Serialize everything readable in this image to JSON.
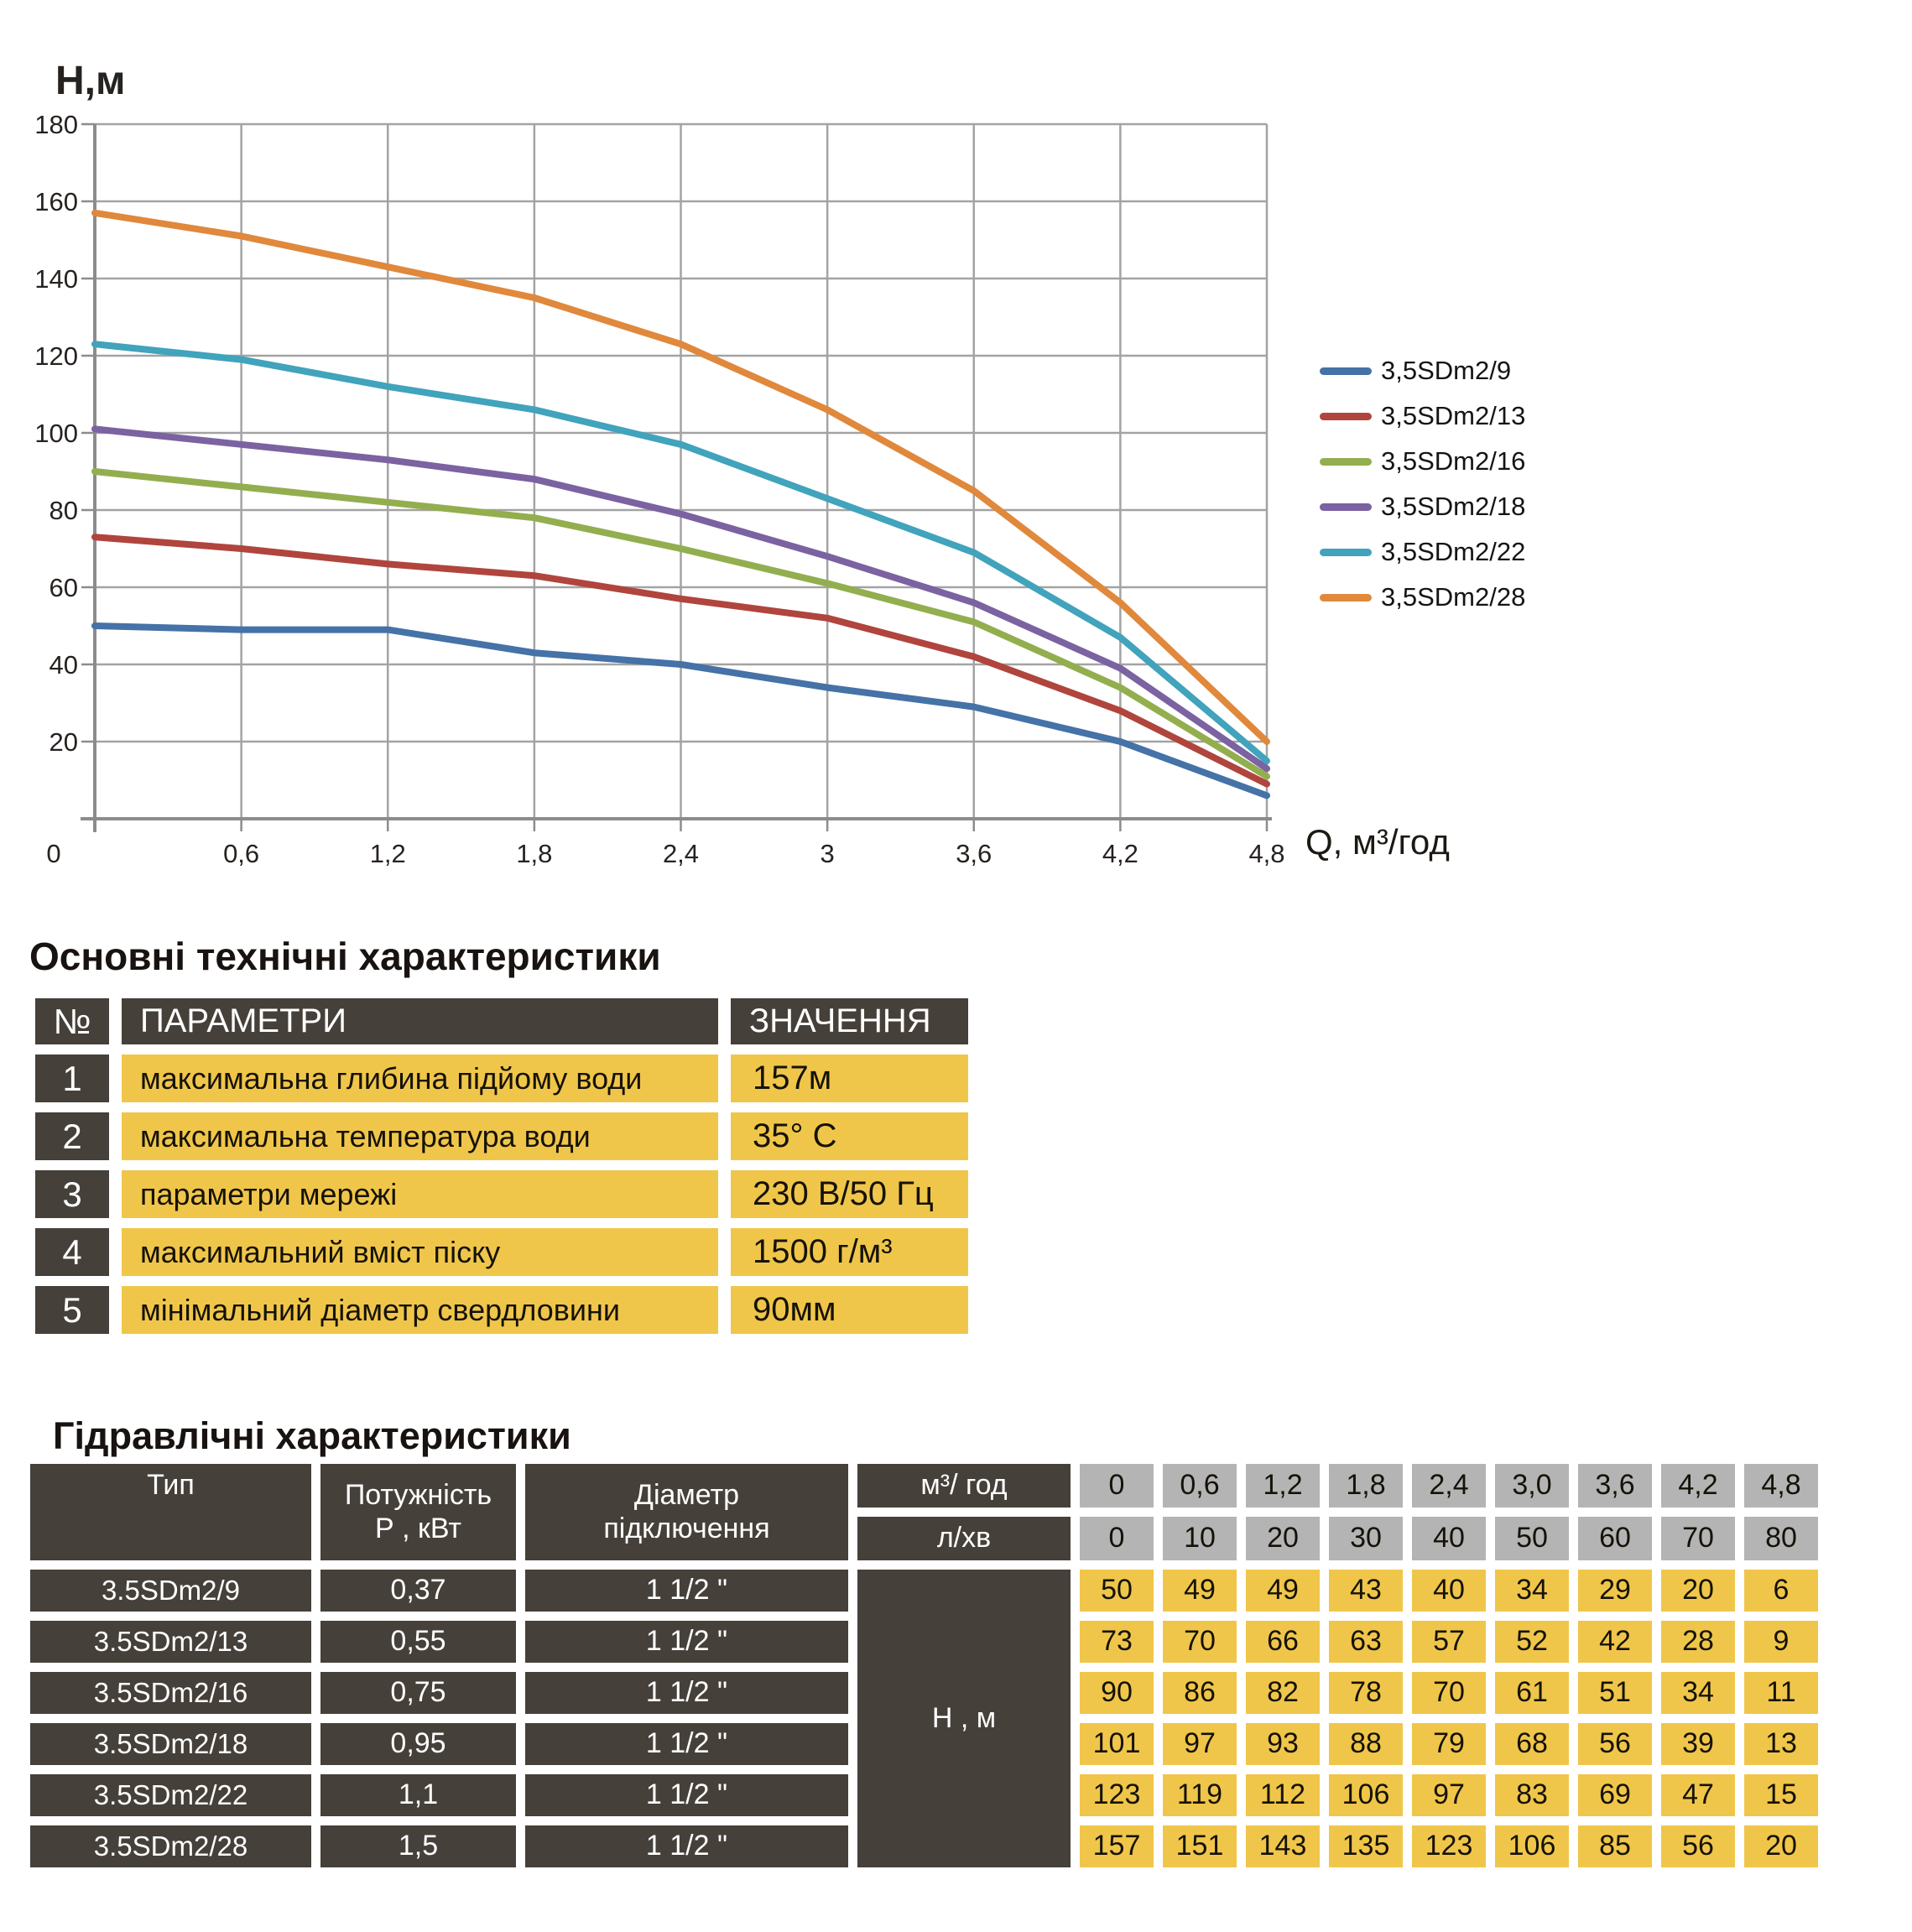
{
  "chart_data": {
    "type": "line",
    "title": "",
    "ylabel": "Н,м",
    "xlabel": "Q,  м³/год",
    "x": [
      0,
      0.6,
      1.2,
      1.8,
      2.4,
      3.0,
      3.6,
      4.2,
      4.8
    ],
    "x_tick_labels": [
      "0",
      "0,6",
      "1,2",
      "1,8",
      "2,4",
      "3",
      "3,6",
      "4,2",
      "4,8"
    ],
    "y_ticks": [
      0,
      20,
      40,
      60,
      80,
      100,
      120,
      140,
      160,
      180
    ],
    "xlim": [
      0,
      4.8
    ],
    "ylim": [
      0,
      180
    ],
    "grid": true,
    "legend_position": "right",
    "series": [
      {
        "name": "3,5SDm2/9",
        "color": "#4572A7",
        "values": [
          50,
          49,
          49,
          43,
          40,
          34,
          29,
          20,
          6
        ]
      },
      {
        "name": "3,5SDm2/13",
        "color": "#B0453E",
        "values": [
          73,
          70,
          66,
          63,
          57,
          52,
          42,
          28,
          9
        ]
      },
      {
        "name": "3,5SDm2/16",
        "color": "#93AE4F",
        "values": [
          90,
          86,
          82,
          78,
          70,
          61,
          51,
          34,
          11
        ]
      },
      {
        "name": "3,5SDm2/18",
        "color": "#7B62A1",
        "values": [
          101,
          97,
          93,
          88,
          79,
          68,
          56,
          39,
          13
        ]
      },
      {
        "name": "3,5SDm2/22",
        "color": "#41A3BC",
        "values": [
          123,
          119,
          112,
          106,
          97,
          83,
          69,
          47,
          15
        ]
      },
      {
        "name": "3,5SDm2/28",
        "color": "#E0883C",
        "values": [
          157,
          151,
          143,
          135,
          123,
          106,
          85,
          56,
          20
        ]
      }
    ]
  },
  "spec_section": {
    "title": "Основні технічні характеристики",
    "headers": {
      "num": "№",
      "param": "ПАРАМЕТРИ",
      "value": "ЗНАЧЕННЯ"
    },
    "rows": [
      {
        "num": "1",
        "param": "максимальна глибина підйому води",
        "value": "157м"
      },
      {
        "num": "2",
        "param": "максимальна температура води",
        "value": "35° С"
      },
      {
        "num": "3",
        "param": "параметри мережі",
        "value": "230 В/50 Гц"
      },
      {
        "num": "4",
        "param": "максимальний вміст піску",
        "value": "1500 г/м³"
      },
      {
        "num": "5",
        "param": "мінімальний діаметр свердловини",
        "value": "90мм"
      }
    ]
  },
  "hydro_section": {
    "title": "Гідравлічні характеристики",
    "headers": {
      "type": "Тип",
      "power": "Потужність\nР , кВт",
      "diameter": "Діаметр\nпідключення",
      "flow_m3h": "м³/ год",
      "flow_lmin": "л/хв",
      "head": "Н , м"
    },
    "flow_m3h_values": [
      "0",
      "0,6",
      "1,2",
      "1,8",
      "2,4",
      "3,0",
      "3,6",
      "4,2",
      "4,8"
    ],
    "flow_lmin_values": [
      "0",
      "10",
      "20",
      "30",
      "40",
      "50",
      "60",
      "70",
      "80"
    ],
    "rows": [
      {
        "type": "3.5SDm2/9",
        "power": "0,37",
        "diameter": "1 1/2 \"",
        "heads": [
          "50",
          "49",
          "49",
          "43",
          "40",
          "34",
          "29",
          "20",
          "6"
        ]
      },
      {
        "type": "3.5SDm2/13",
        "power": "0,55",
        "diameter": "1 1/2 \"",
        "heads": [
          "73",
          "70",
          "66",
          "63",
          "57",
          "52",
          "42",
          "28",
          "9"
        ]
      },
      {
        "type": "3.5SDm2/16",
        "power": "0,75",
        "diameter": "1 1/2 \"",
        "heads": [
          "90",
          "86",
          "82",
          "78",
          "70",
          "61",
          "51",
          "34",
          "11"
        ]
      },
      {
        "type": "3.5SDm2/18",
        "power": "0,95",
        "diameter": "1 1/2 \"",
        "heads": [
          "101",
          "97",
          "93",
          "88",
          "79",
          "68",
          "56",
          "39",
          "13"
        ]
      },
      {
        "type": "3.5SDm2/22",
        "power": "1,1",
        "diameter": "1 1/2 \"",
        "heads": [
          "123",
          "119",
          "112",
          "106",
          "97",
          "83",
          "69",
          "47",
          "15"
        ]
      },
      {
        "type": "3.5SDm2/28",
        "power": "1,5",
        "diameter": "1 1/2 \"",
        "heads": [
          "157",
          "151",
          "143",
          "135",
          "123",
          "106",
          "85",
          "56",
          "20"
        ]
      }
    ]
  },
  "colors": {
    "dark_cell": "#454039",
    "yellow_cell": "#F0C64A",
    "gray_cell": "#B4B4B4",
    "gridline": "#A3A3A3",
    "axis": "#8C8C8C"
  }
}
